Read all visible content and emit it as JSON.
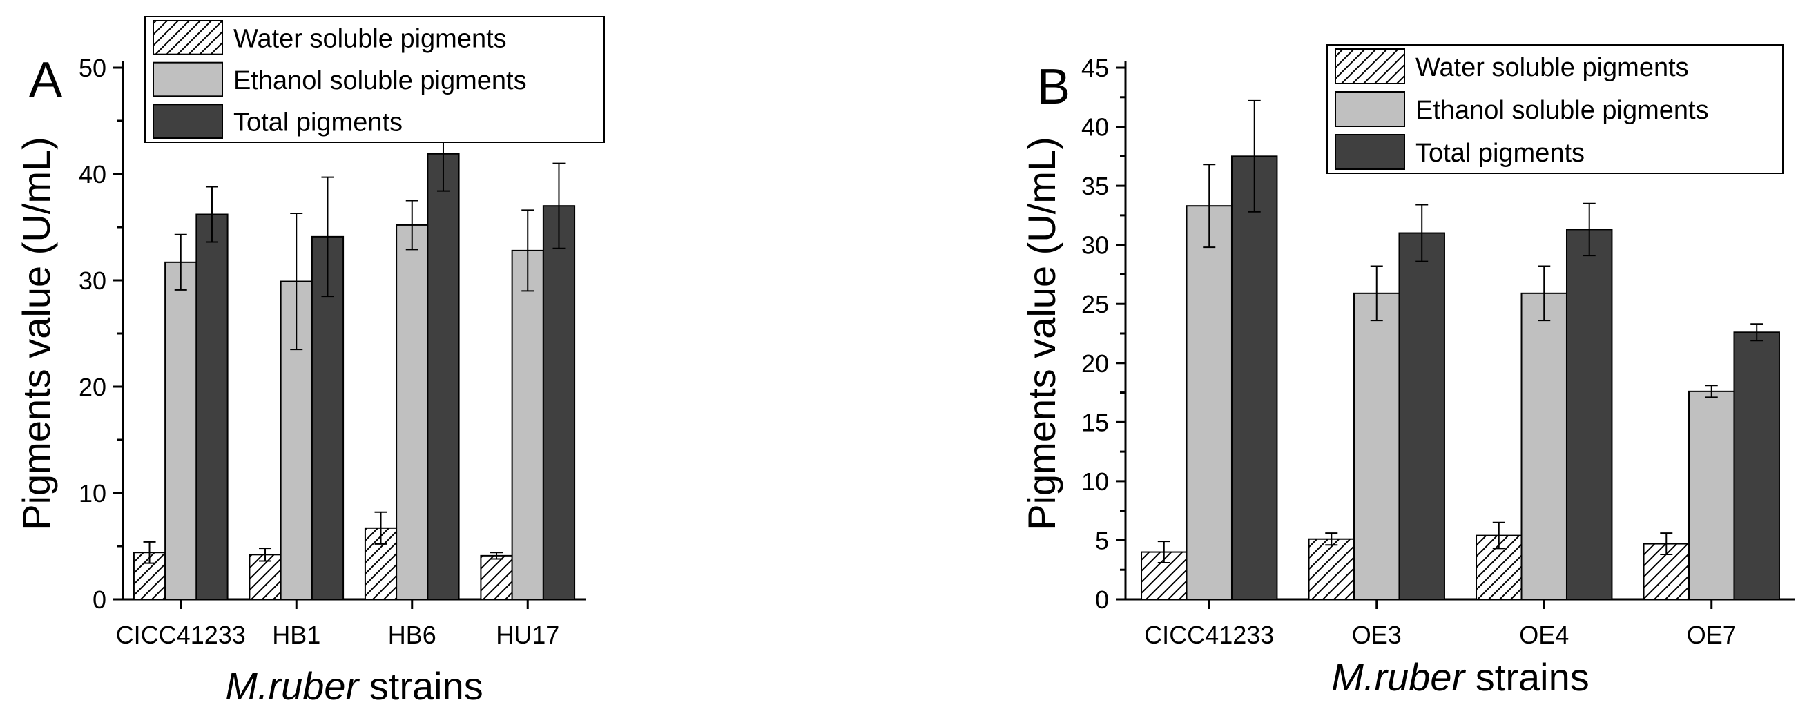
{
  "chart_data": [
    {
      "type": "bar",
      "panel_label": "A",
      "categories": [
        "CICC41233",
        "HB1",
        "HB6",
        "HU17"
      ],
      "xlabel_italic": "M.ruber",
      "xlabel_rest": " strains",
      "ylabel": "Pigments value (U/mL)",
      "ylim": [
        0,
        50
      ],
      "yticks": [
        0,
        10,
        20,
        30,
        40,
        50
      ],
      "series": [
        {
          "name": "Water soluble pigments",
          "style": "hatch",
          "values": [
            4.4,
            4.2,
            6.7,
            4.1
          ],
          "errors": [
            1.0,
            0.6,
            1.5,
            0.3
          ]
        },
        {
          "name": "Ethanol soluble pigments",
          "style": "light",
          "values": [
            31.7,
            29.9,
            35.2,
            32.8
          ],
          "errors": [
            2.6,
            6.4,
            2.3,
            3.8
          ]
        },
        {
          "name": "Total pigments",
          "style": "dark",
          "values": [
            36.2,
            34.1,
            41.9,
            37.0
          ],
          "errors": [
            2.6,
            5.6,
            3.5,
            4.0
          ]
        }
      ],
      "legend_position": "top-center"
    },
    {
      "type": "bar",
      "panel_label": "B",
      "categories": [
        "CICC41233",
        "OE3",
        "OE4",
        "OE7"
      ],
      "xlabel_italic": "M.ruber",
      "xlabel_rest": " strains",
      "ylabel": "Pigments value (U/mL)",
      "ylim": [
        0,
        45
      ],
      "yticks": [
        0,
        5,
        10,
        15,
        20,
        25,
        30,
        35,
        40,
        45
      ],
      "series": [
        {
          "name": "Water soluble pigments",
          "style": "hatch",
          "values": [
            4.0,
            5.1,
            5.4,
            4.7
          ],
          "errors": [
            0.9,
            0.5,
            1.1,
            0.9
          ]
        },
        {
          "name": "Ethanol soluble pigments",
          "style": "light",
          "values": [
            33.3,
            25.9,
            25.9,
            17.6
          ],
          "errors": [
            3.5,
            2.3,
            2.3,
            0.5
          ]
        },
        {
          "name": "Total pigments",
          "style": "dark",
          "values": [
            37.5,
            31.0,
            31.3,
            22.6
          ],
          "errors": [
            4.7,
            2.4,
            2.2,
            0.7
          ]
        }
      ],
      "legend_position": "top-right"
    }
  ],
  "colors": {
    "hatch_fill": "#ffffff",
    "light": "#c0c0c0",
    "dark": "#404040",
    "axis": "#000000"
  }
}
